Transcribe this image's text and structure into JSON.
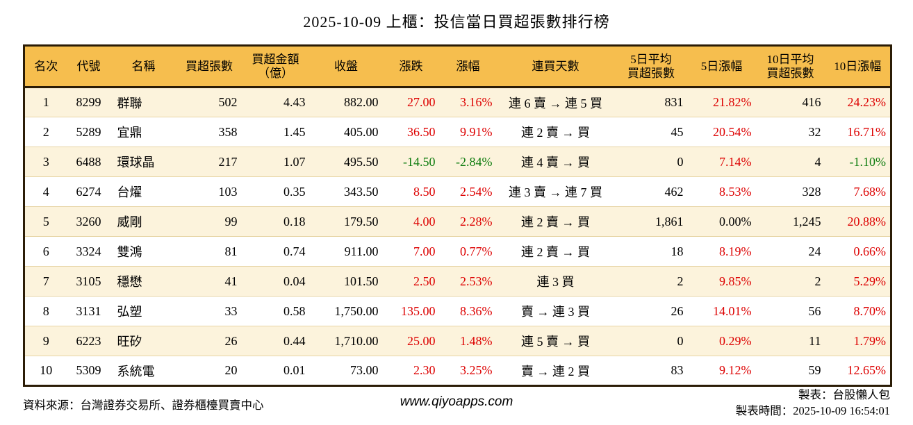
{
  "title": "2025-10-09 上櫃：投信當日買超張數排行榜",
  "colors": {
    "up": "#dd0000",
    "down": "#0e7c0e",
    "neutral": "#000000",
    "header_bg": "#f6be4e",
    "row_alt_bg": "#fcf3dc",
    "border": "#2b1c06",
    "separator": "#e7d4a4"
  },
  "table": {
    "columns": [
      {
        "key": "rank",
        "label": "名次"
      },
      {
        "key": "code",
        "label": "代號"
      },
      {
        "key": "name",
        "label": "名稱"
      },
      {
        "key": "net_buy",
        "label": "買超張數"
      },
      {
        "key": "amount",
        "label": "買超金額\n（億）"
      },
      {
        "key": "close",
        "label": "收盤"
      },
      {
        "key": "change",
        "label": "漲跌"
      },
      {
        "key": "change_pct",
        "label": "漲幅"
      },
      {
        "key": "streak",
        "label": "連買天數"
      },
      {
        "key": "avg5",
        "label": "5日平均\n買超張數"
      },
      {
        "key": "pct5",
        "label": "5日漲幅"
      },
      {
        "key": "avg10",
        "label": "10日平均\n買超張數"
      },
      {
        "key": "pct10",
        "label": "10日漲幅"
      }
    ],
    "rows": [
      {
        "rank": "1",
        "code": "8299",
        "name": "群聯",
        "net_buy": "502",
        "amount": "4.43",
        "close": "882.00",
        "change": "27.00",
        "change_pct": "3.16%",
        "streak": "連 6 賣 → 連 5 買",
        "avg5": "831",
        "pct5": "21.82%",
        "avg10": "416",
        "pct10": "24.23%"
      },
      {
        "rank": "2",
        "code": "5289",
        "name": "宜鼎",
        "net_buy": "358",
        "amount": "1.45",
        "close": "405.00",
        "change": "36.50",
        "change_pct": "9.91%",
        "streak": "連 2 賣 → 買",
        "avg5": "45",
        "pct5": "20.54%",
        "avg10": "32",
        "pct10": "16.71%"
      },
      {
        "rank": "3",
        "code": "6488",
        "name": "環球晶",
        "net_buy": "217",
        "amount": "1.07",
        "close": "495.50",
        "change": "-14.50",
        "change_pct": "-2.84%",
        "streak": "連 4 賣 → 買",
        "avg5": "0",
        "pct5": "7.14%",
        "avg10": "4",
        "pct10": "-1.10%"
      },
      {
        "rank": "4",
        "code": "6274",
        "name": "台燿",
        "net_buy": "103",
        "amount": "0.35",
        "close": "343.50",
        "change": "8.50",
        "change_pct": "2.54%",
        "streak": "連 3 賣 → 連 7 買",
        "avg5": "462",
        "pct5": "8.53%",
        "avg10": "328",
        "pct10": "7.68%"
      },
      {
        "rank": "5",
        "code": "3260",
        "name": "威剛",
        "net_buy": "99",
        "amount": "0.18",
        "close": "179.50",
        "change": "4.00",
        "change_pct": "2.28%",
        "streak": "連 2 賣 → 買",
        "avg5": "1,861",
        "pct5": "0.00%",
        "avg10": "1,245",
        "pct10": "20.88%"
      },
      {
        "rank": "6",
        "code": "3324",
        "name": "雙鴻",
        "net_buy": "81",
        "amount": "0.74",
        "close": "911.00",
        "change": "7.00",
        "change_pct": "0.77%",
        "streak": "連 2 賣 → 買",
        "avg5": "18",
        "pct5": "8.19%",
        "avg10": "24",
        "pct10": "0.66%"
      },
      {
        "rank": "7",
        "code": "3105",
        "name": "穩懋",
        "net_buy": "41",
        "amount": "0.04",
        "close": "101.50",
        "change": "2.50",
        "change_pct": "2.53%",
        "streak": "連 3 買",
        "avg5": "2",
        "pct5": "9.85%",
        "avg10": "2",
        "pct10": "5.29%"
      },
      {
        "rank": "8",
        "code": "3131",
        "name": "弘塑",
        "net_buy": "33",
        "amount": "0.58",
        "close": "1,750.00",
        "change": "135.00",
        "change_pct": "8.36%",
        "streak": "賣 → 連 3 買",
        "avg5": "26",
        "pct5": "14.01%",
        "avg10": "56",
        "pct10": "8.70%"
      },
      {
        "rank": "9",
        "code": "6223",
        "name": "旺矽",
        "net_buy": "26",
        "amount": "0.44",
        "close": "1,710.00",
        "change": "25.00",
        "change_pct": "1.48%",
        "streak": "連 5 賣 → 買",
        "avg5": "0",
        "pct5": "0.29%",
        "avg10": "11",
        "pct10": "1.79%"
      },
      {
        "rank": "10",
        "code": "5309",
        "name": "系統電",
        "net_buy": "20",
        "amount": "0.01",
        "close": "73.00",
        "change": "2.30",
        "change_pct": "3.25%",
        "streak": "賣 → 連 2 買",
        "avg5": "83",
        "pct5": "9.12%",
        "avg10": "59",
        "pct10": "12.65%"
      }
    ]
  },
  "footer": {
    "source": "資料來源：台灣證券交易所、證券櫃檯買賣中心",
    "website": "www.qiyoapps.com",
    "made_by": "製表：台股懶人包",
    "made_time": "製表時間：2025-10-09 16:54:01"
  }
}
